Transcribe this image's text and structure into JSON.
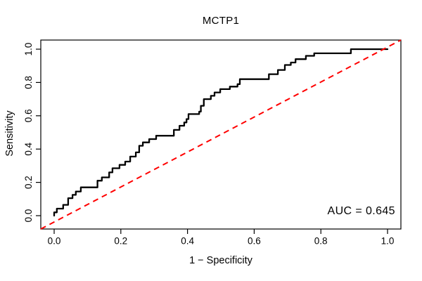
{
  "chart_data": {
    "type": "line",
    "subtype": "roc-curve",
    "title": "MCTP1",
    "xlabel": "1 − Specificity",
    "ylabel": "Sensitivity",
    "annotation": "AUC = 0.645",
    "auc": 0.645,
    "xlim": [
      0,
      1
    ],
    "ylim": [
      0,
      1
    ],
    "grid": false,
    "legend": "none",
    "x_ticks": [
      0.0,
      0.2,
      0.4,
      0.6,
      0.8,
      1.0
    ],
    "x_tick_labels": [
      "0.0",
      "0.2",
      "0.4",
      "0.6",
      "0.8",
      "1.0"
    ],
    "y_ticks": [
      0.0,
      0.2,
      0.4,
      0.6,
      0.8,
      1.0
    ],
    "y_tick_labels": [
      "0.0",
      "0.2",
      "0.4",
      "0.6",
      "0.8",
      "1.0"
    ],
    "colors": {
      "curve": "#000000",
      "reference": "#FF0000",
      "frame": "#000000",
      "text": "#000000",
      "background": "#FFFFFF"
    },
    "series": [
      {
        "name": "ROC curve (MCTP1)",
        "style": "step",
        "color": "#000000",
        "line_width": 2.3,
        "points": [
          [
            0,
            0
          ],
          [
            0,
            0.02
          ],
          [
            0.008,
            0.02
          ],
          [
            0.008,
            0.042
          ],
          [
            0.027,
            0.042
          ],
          [
            0.027,
            0.065
          ],
          [
            0.042,
            0.065
          ],
          [
            0.042,
            0.105
          ],
          [
            0.055,
            0.105
          ],
          [
            0.055,
            0.125
          ],
          [
            0.065,
            0.125
          ],
          [
            0.065,
            0.145
          ],
          [
            0.08,
            0.145
          ],
          [
            0.08,
            0.17
          ],
          [
            0.13,
            0.17
          ],
          [
            0.13,
            0.21
          ],
          [
            0.143,
            0.21
          ],
          [
            0.143,
            0.23
          ],
          [
            0.165,
            0.23
          ],
          [
            0.165,
            0.26
          ],
          [
            0.175,
            0.26
          ],
          [
            0.175,
            0.285
          ],
          [
            0.196,
            0.285
          ],
          [
            0.196,
            0.305
          ],
          [
            0.213,
            0.305
          ],
          [
            0.213,
            0.325
          ],
          [
            0.228,
            0.325
          ],
          [
            0.228,
            0.355
          ],
          [
            0.245,
            0.355
          ],
          [
            0.245,
            0.38
          ],
          [
            0.255,
            0.38
          ],
          [
            0.255,
            0.42
          ],
          [
            0.266,
            0.42
          ],
          [
            0.266,
            0.44
          ],
          [
            0.285,
            0.44
          ],
          [
            0.285,
            0.46
          ],
          [
            0.306,
            0.46
          ],
          [
            0.306,
            0.48
          ],
          [
            0.359,
            0.48
          ],
          [
            0.359,
            0.515
          ],
          [
            0.376,
            0.515
          ],
          [
            0.376,
            0.54
          ],
          [
            0.39,
            0.54
          ],
          [
            0.39,
            0.56
          ],
          [
            0.397,
            0.56
          ],
          [
            0.397,
            0.58
          ],
          [
            0.403,
            0.58
          ],
          [
            0.403,
            0.61
          ],
          [
            0.435,
            0.61
          ],
          [
            0.435,
            0.625
          ],
          [
            0.44,
            0.625
          ],
          [
            0.44,
            0.66
          ],
          [
            0.449,
            0.66
          ],
          [
            0.449,
            0.7
          ],
          [
            0.47,
            0.7
          ],
          [
            0.47,
            0.72
          ],
          [
            0.481,
            0.72
          ],
          [
            0.481,
            0.74
          ],
          [
            0.498,
            0.74
          ],
          [
            0.498,
            0.76
          ],
          [
            0.527,
            0.76
          ],
          [
            0.527,
            0.775
          ],
          [
            0.55,
            0.775
          ],
          [
            0.55,
            0.79
          ],
          [
            0.557,
            0.79
          ],
          [
            0.557,
            0.82
          ],
          [
            0.644,
            0.82
          ],
          [
            0.644,
            0.85
          ],
          [
            0.671,
            0.85
          ],
          [
            0.671,
            0.875
          ],
          [
            0.692,
            0.875
          ],
          [
            0.692,
            0.905
          ],
          [
            0.71,
            0.905
          ],
          [
            0.71,
            0.92
          ],
          [
            0.724,
            0.92
          ],
          [
            0.724,
            0.94
          ],
          [
            0.755,
            0.94
          ],
          [
            0.755,
            0.96
          ],
          [
            0.78,
            0.96
          ],
          [
            0.78,
            0.975
          ],
          [
            0.89,
            0.975
          ],
          [
            0.89,
            1
          ],
          [
            1,
            1
          ]
        ]
      },
      {
        "name": "chance reference line",
        "style": "dashed",
        "color": "#FF0000",
        "line_width": 2,
        "dash": [
          8,
          6
        ],
        "spans_full_box": true,
        "points": [
          [
            0,
            0
          ],
          [
            1,
            1
          ]
        ]
      }
    ]
  }
}
